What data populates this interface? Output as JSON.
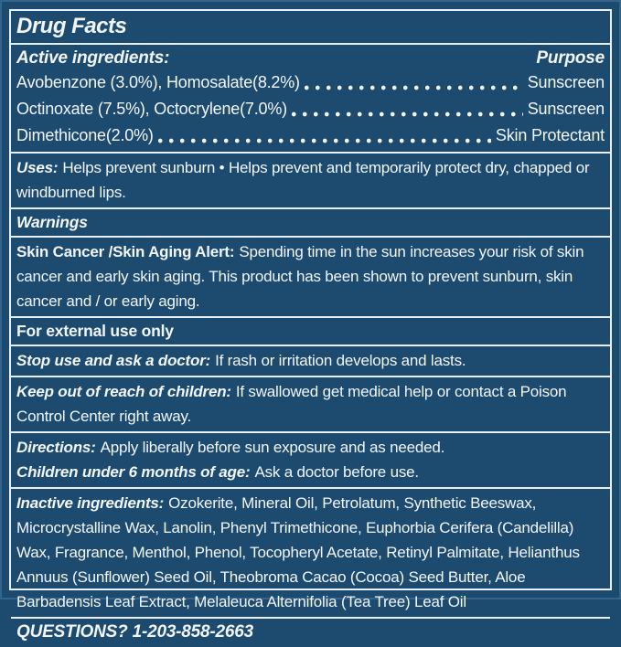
{
  "colors": {
    "background": "#1d4b70",
    "outer_edge": "#35648c",
    "border_lines": "#e9f0f5",
    "text": "#f2f6f9"
  },
  "title": "Drug Facts",
  "active_ingredients": {
    "heading": "Active ingredients:",
    "purpose_heading": "Purpose",
    "rows": [
      {
        "ingredient": "Avobenzone (3.0%), Homosalate(8.2%)",
        "purpose": "Sunscreen"
      },
      {
        "ingredient": "Octinoxate (7.5%), Octocrylene(7.0%)",
        "purpose": "Sunscreen"
      },
      {
        "ingredient": "Dimethicone(2.0%)",
        "purpose": "Skin Protectant"
      }
    ]
  },
  "uses": {
    "label": "Uses:",
    "text": "Helps prevent sunburn • Helps prevent and temporarily protect dry, chapped or windburned lips."
  },
  "warnings": {
    "label": "Warnings"
  },
  "skin_cancer_alert": {
    "label": "Skin Cancer /Skin Aging Alert:",
    "text": "Spending time in the sun increases your risk of skin cancer and early skin aging. This product has been shown to prevent sunburn, skin cancer and / or early aging."
  },
  "external_use": {
    "label": "For external use only"
  },
  "stop_use": {
    "label": "Stop use and ask a doctor:",
    "text": "If rash or irritation develops and lasts."
  },
  "keep_out": {
    "label": "Keep out of reach of children:",
    "text": "If swallowed get medical help or contact a Poison Control Center right away."
  },
  "directions": {
    "label": "Directions:",
    "text": "Apply liberally before sun exposure and as needed."
  },
  "children": {
    "label": "Children under 6 months of age:",
    "text": "Ask a doctor before use."
  },
  "inactive_ingredients": {
    "label": "Inactive ingredients:",
    "text": "Ozokerite, Mineral Oil, Petrolatum, Synthetic Beeswax, Microcrystalline Wax, Lanolin, Phenyl Trimethicone, Euphorbia Cerifera (Candelilla) Wax, Fragrance, Menthol, Phenol, Tocopheryl Acetate, Retinyl Palmitate, Helianthus Annuus (Sunflower) Seed Oil, Theobroma Cacao (Cocoa) Seed Butter, Aloe Barbadensis Leaf Extract, Melaleuca Alternifolia (Tea Tree) Leaf Oil"
  },
  "questions": {
    "label": "QUESTIONS? 1-203-858-2663"
  }
}
